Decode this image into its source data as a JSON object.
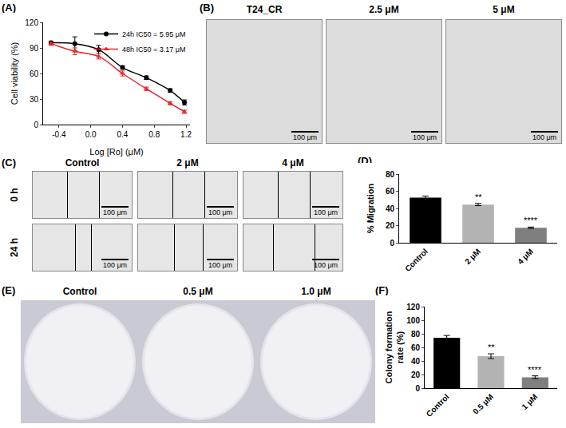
{
  "chart_data": [
    {
      "panel": "(A)",
      "type": "line",
      "x_title": "Log [Ro] (μM)",
      "y_title": "Cell viability (%)",
      "x": [
        -0.5,
        -0.2,
        0.1,
        0.4,
        0.7,
        1.0,
        1.18
      ],
      "xlim": [
        -0.6,
        1.25
      ],
      "xticks": [
        -0.4,
        {
          "value": 0,
          "label": "0.0"
        },
        0.4,
        0.8,
        1.2
      ],
      "ylim": [
        0,
        120
      ],
      "yticks": [
        0,
        30,
        60,
        90,
        120
      ],
      "grid": false,
      "legend": "top-right",
      "series": [
        {
          "name": "24h IC50 = 5.95 μM",
          "color": "#000000",
          "marker": "circle",
          "line_style": "solid",
          "values": [
            96,
            95,
            88,
            67,
            55,
            40,
            26
          ],
          "errors": [
            2,
            8,
            5,
            2,
            2,
            2,
            3
          ]
        },
        {
          "name": "48h IC50 = 3.17 μM",
          "color": "#e8262a",
          "marker": "triangle-up",
          "line_style": "solid",
          "values": [
            95,
            86,
            80,
            60,
            42,
            25,
            15
          ],
          "errors": [
            2,
            4,
            3,
            3,
            2,
            2,
            2
          ]
        }
      ]
    },
    {
      "panel": "(D)",
      "type": "bar",
      "y_title": "% Migration",
      "categories": [
        "Control",
        "2 μM",
        "4 μM"
      ],
      "values": [
        52.5,
        44.5,
        17.5
      ],
      "errors": [
        1.8,
        1.3,
        0.8
      ],
      "colors": [
        "#000000",
        "#b3b3b3",
        "#7f7f7f"
      ],
      "significance": [
        null,
        "**",
        "****"
      ],
      "ylim": [
        0,
        80
      ],
      "yticks": [
        0,
        20,
        40,
        60,
        80
      ],
      "grid": false
    },
    {
      "panel": "(F)",
      "type": "bar",
      "y_title": "Colony formation rate (%)",
      "categories": [
        "Control",
        "0.5 μM",
        "1 μM"
      ],
      "values": [
        74,
        47,
        16
      ],
      "errors": [
        3.5,
        3.5,
        2
      ],
      "colors": [
        "#000000",
        "#b3b3b3",
        "#7f7f7f"
      ],
      "significance": [
        null,
        "**",
        "****"
      ],
      "ylim": [
        0,
        120
      ],
      "yticks": [
        0,
        20,
        40,
        60,
        80,
        100,
        120
      ],
      "grid": false
    }
  ],
  "image_panels": {
    "B": {
      "panel": "(B)",
      "labels": [
        "T24_CR",
        "2.5 μM",
        "5 μM"
      ],
      "scale_bar": "100 μm"
    },
    "C": {
      "panel": "(C)",
      "columns": [
        "Control",
        "2 μM",
        "4 μM"
      ],
      "rows": [
        "0 h",
        "24 h"
      ],
      "scale_bar": "100 μm"
    },
    "E": {
      "panel": "(E)",
      "labels": [
        "Control",
        "0.5 μM",
        "1.0 μM"
      ]
    }
  }
}
